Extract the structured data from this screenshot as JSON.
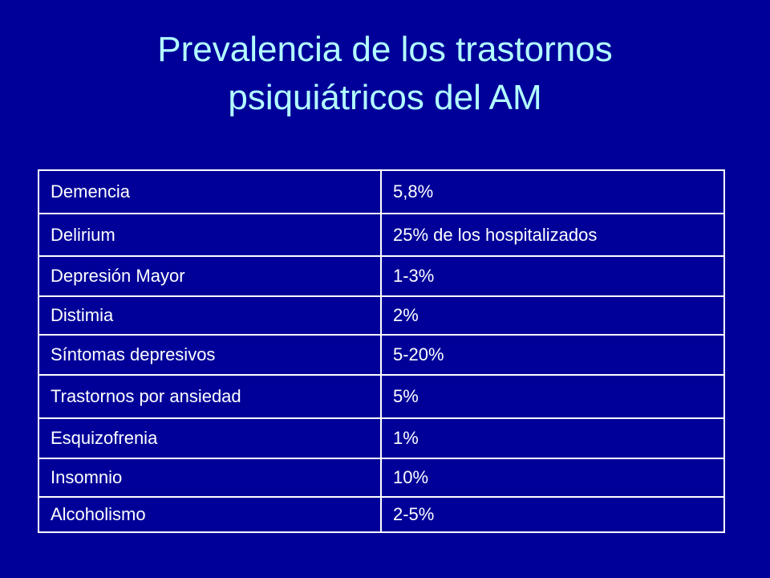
{
  "title": [
    "Prevalencia de los trastornos",
    "psiquiátricos del AM"
  ],
  "table": {
    "rows": [
      [
        "Demencia",
        "5,8%"
      ],
      [
        "Delirium",
        "25% de los hospitalizados"
      ],
      [
        "Depresión Mayor",
        "1-3%"
      ],
      [
        "Distimia",
        "2%"
      ],
      [
        "Síntomas depresivos",
        "5-20%"
      ],
      [
        "Trastornos por ansiedad",
        "5%"
      ],
      [
        "Esquizofrenia",
        "1%"
      ],
      [
        "Insomnio",
        "10%"
      ],
      [
        "Alcoholismo",
        "2-5%"
      ]
    ]
  }
}
